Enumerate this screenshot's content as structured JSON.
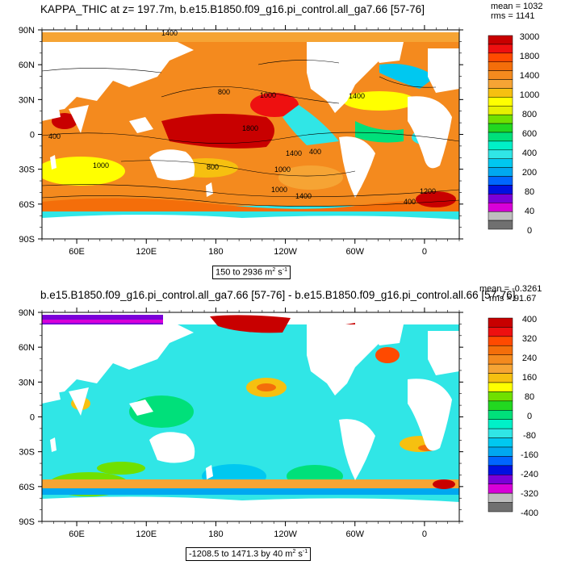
{
  "panels": [
    {
      "id": "top",
      "title": "KAPPA_THIC at z= 197.7m, b.e15.B1850.f09_g16.pi_control.all_ga7.66 [57-76]",
      "stats": {
        "mean": "mean = 1032",
        "rms": "rms = 1141"
      },
      "lat_labels": [
        "90N",
        "60N",
        "30N",
        "0",
        "30S",
        "60S",
        "90S"
      ],
      "lon_labels": [
        "60E",
        "120E",
        "180",
        "120W",
        "60W",
        "0"
      ],
      "range_text": "150 to 2936 m",
      "range_units_sup": "2",
      "range_units_s": " s",
      "range_units_sup2": "-1",
      "colorbar": {
        "labels": [
          "3000",
          "1800",
          "1400",
          "1000",
          "800",
          "600",
          "400",
          "200",
          "80",
          "40",
          "0"
        ],
        "colors": [
          "#c80000",
          "#ee1010",
          "#ff4a00",
          "#f46e0a",
          "#f48a1e",
          "#f6a434",
          "#f6c010",
          "#ffff00",
          "#e6f000",
          "#70e000",
          "#22d820",
          "#00e07a",
          "#00f0c8",
          "#30e6e6",
          "#00c8f0",
          "#00a8f0",
          "#0066ff",
          "#0010e0",
          "#7a00d8",
          "#d800d8",
          "#bebebe",
          "#707070"
        ]
      },
      "contour_labels": [
        "1400",
        "800",
        "1000",
        "1800",
        "1400",
        "800",
        "1000",
        "1000",
        "1400",
        "1400",
        "400",
        "400",
        "1200",
        "400",
        "1000"
      ]
    },
    {
      "id": "bottom",
      "title": "b.e15.B1850.f09_g16.pi_control.all_ga7.66 [57-76] - b.e15.B1850.f09_g16.pi_control.all.66 [57-76]",
      "stats": {
        "mean": "mean = -0.3261",
        "rms": "rms = 91.67"
      },
      "lat_labels": [
        "90N",
        "60N",
        "30N",
        "0",
        "30S",
        "60S",
        "90S"
      ],
      "lon_labels": [
        "60E",
        "120E",
        "180",
        "120W",
        "60W",
        "0"
      ],
      "range_text": "-1208.5 to 1471.3 by 40 m",
      "range_units_sup": "2",
      "range_units_s": " s",
      "range_units_sup2": "-1",
      "colorbar": {
        "labels": [
          "400",
          "320",
          "240",
          "160",
          "80",
          "0",
          "-80",
          "-160",
          "-240",
          "-320",
          "-400"
        ],
        "colors": [
          "#c80000",
          "#ee1010",
          "#ff4a00",
          "#f46e0a",
          "#f48a1e",
          "#f6a434",
          "#f6c010",
          "#ffff00",
          "#70e000",
          "#22d820",
          "#00e07a",
          "#00f0c8",
          "#30e6e6",
          "#00c8f0",
          "#00a8f0",
          "#0066ff",
          "#0010e0",
          "#7a00d8",
          "#d800d8",
          "#bebebe",
          "#707070"
        ]
      }
    }
  ]
}
